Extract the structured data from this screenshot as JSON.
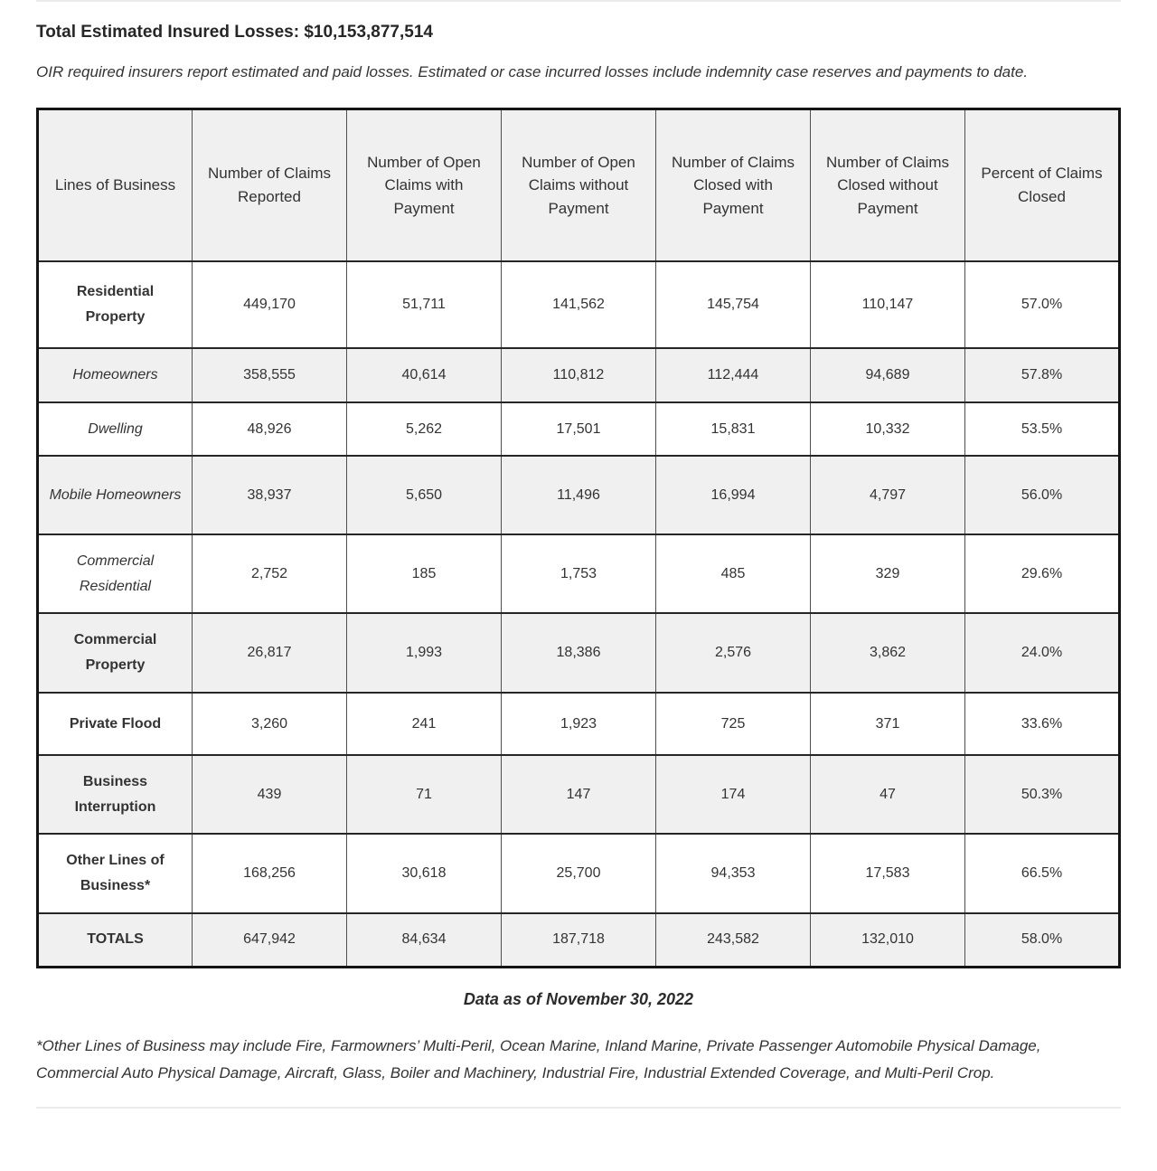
{
  "page": {
    "title": "Total Estimated Insured Losses: $10,153,877,514",
    "intro": "OIR required insurers report estimated and paid losses. Estimated or case incurred losses include indemnity case reserves and payments to date.",
    "data_as_of": "Data as of November 30, 2022",
    "footnote": "*Other Lines of Business may include Fire, Farmowners’ Multi-Peril, Ocean Marine, Inland Marine, Private Passenger Automobile Physical Damage, Commercial Auto Physical Damage, Aircraft, Glass, Boiler and Machinery, Industrial Fire, Industrial Extended Coverage, and Multi-Peril Crop."
  },
  "table": {
    "headers": [
      "Lines of Business",
      "Number of Claims Reported",
      "Number of Open Claims with Payment",
      "Number of Open Claims without Payment",
      "Number of Claims Closed with Payment",
      "Number of Claims Closed without Payment",
      "Percent of Claims Closed"
    ],
    "rows": [
      {
        "label": "Residential Property",
        "style": "bold",
        "values": [
          "449,170",
          "51,711",
          "141,562",
          "145,754",
          "110,147",
          "57.0%"
        ]
      },
      {
        "label": "Homeowners",
        "style": "italic",
        "values": [
          "358,555",
          "40,614",
          "110,812",
          "112,444",
          "94,689",
          "57.8%"
        ]
      },
      {
        "label": "Dwelling",
        "style": "italic",
        "values": [
          "48,926",
          "5,262",
          "17,501",
          "15,831",
          "10,332",
          "53.5%"
        ]
      },
      {
        "label": "Mobile Homeowners",
        "style": "italic",
        "values": [
          "38,937",
          "5,650",
          "11,496",
          "16,994",
          "4,797",
          "56.0%"
        ]
      },
      {
        "label": "Commercial Residential",
        "style": "italic",
        "values": [
          "2,752",
          "185",
          "1,753",
          "485",
          "329",
          "29.6%"
        ]
      },
      {
        "label": "Commercial Property",
        "style": "bold",
        "values": [
          "26,817",
          "1,993",
          "18,386",
          "2,576",
          "3,862",
          "24.0%"
        ]
      },
      {
        "label": "Private Flood",
        "style": "bold",
        "values": [
          "3,260",
          "241",
          "1,923",
          "725",
          "371",
          "33.6%"
        ]
      },
      {
        "label": "Business Interruption",
        "style": "bold",
        "values": [
          "439",
          "71",
          "147",
          "174",
          "47",
          "50.3%"
        ]
      },
      {
        "label": "Other Lines of Business*",
        "style": "bold",
        "values": [
          "168,256",
          "30,618",
          "25,700",
          "94,353",
          "17,583",
          "66.5%"
        ]
      },
      {
        "label": "TOTALS",
        "style": "bold",
        "values": [
          "647,942",
          "84,634",
          "187,718",
          "243,582",
          "132,010",
          "58.0%"
        ]
      }
    ]
  }
}
